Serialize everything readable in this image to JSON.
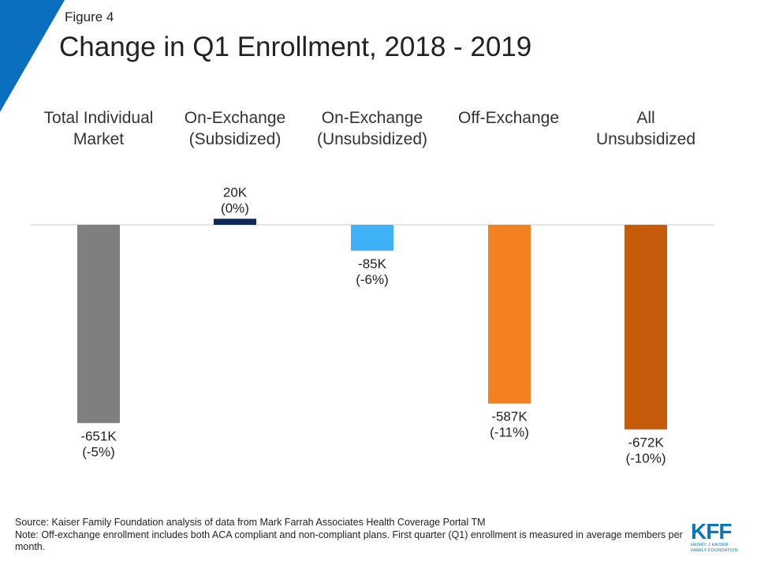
{
  "figure_label": "Figure 4",
  "colors": {
    "corner_accent": "#0a6fbf",
    "baseline": "#cccccc"
  },
  "chart_data": {
    "type": "bar",
    "title": "Change in Q1 Enrollment, 2018 - 2019",
    "xlabel": "",
    "ylabel": "",
    "categories": [
      "Total Individual\nMarket",
      "On-Exchange\n(Subsidized)",
      "On-Exchange\n(Unsubsidized)",
      "Off-Exchange",
      "All\nUnsubsidized"
    ],
    "values": [
      -651,
      20,
      -85,
      -587,
      -672
    ],
    "data_labels": [
      [
        "-651K",
        "(-5%)"
      ],
      [
        "20K",
        "(0%)"
      ],
      [
        "-85K",
        "(-6%)"
      ],
      [
        "-587K",
        "(-11%)"
      ],
      [
        "-672K",
        "(-10%)"
      ]
    ],
    "colors": [
      "#7f7f7f",
      "#0d2a5a",
      "#3fb2f7",
      "#f48120",
      "#c65c0b"
    ],
    "ylim": [
      -700,
      100
    ],
    "grid": false
  },
  "footer": {
    "source": "Source: Kaiser Family Foundation analysis of data from Mark Farrah Associates Health Coverage Portal TM",
    "note": "Note: Off-exchange enrollment includes both ACA compliant and non-compliant plans. First quarter (Q1) enrollment is measured in average members per month."
  },
  "logo": {
    "mark": "KFF",
    "line1": "HENRY J KAISER",
    "line2": "FAMILY FOUNDATION"
  }
}
